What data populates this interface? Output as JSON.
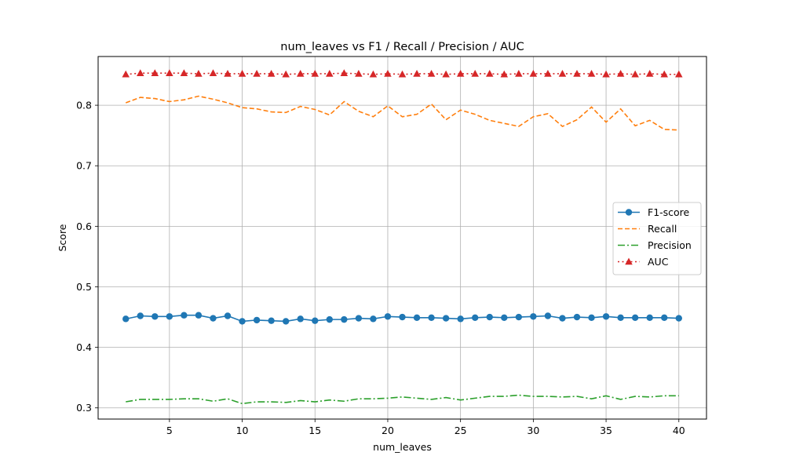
{
  "chart_data": {
    "type": "line",
    "title": "num_leaves vs F1 / Recall / Precision / AUC",
    "xlabel": "num_leaves",
    "ylabel": "Score",
    "xlim": [
      0.1,
      41.9
    ],
    "ylim": [
      0.2815,
      0.8805
    ],
    "xticks": [
      5,
      10,
      15,
      20,
      25,
      30,
      35,
      40
    ],
    "yticks": [
      0.3,
      0.4,
      0.5,
      0.6,
      0.7,
      0.8
    ],
    "grid": true,
    "legend_position": "center-right",
    "x": [
      2,
      3,
      4,
      5,
      6,
      7,
      8,
      9,
      10,
      11,
      12,
      13,
      14,
      15,
      16,
      17,
      18,
      19,
      20,
      21,
      22,
      23,
      24,
      25,
      26,
      27,
      28,
      29,
      30,
      31,
      32,
      33,
      34,
      35,
      36,
      37,
      38,
      39,
      40
    ],
    "series": [
      {
        "name": "F1-score",
        "color": "#1f77b4",
        "style": "solid",
        "marker": "circle",
        "values": [
          0.447,
          0.452,
          0.451,
          0.451,
          0.453,
          0.453,
          0.448,
          0.452,
          0.443,
          0.445,
          0.444,
          0.443,
          0.447,
          0.444,
          0.446,
          0.446,
          0.448,
          0.447,
          0.451,
          0.45,
          0.449,
          0.449,
          0.448,
          0.447,
          0.449,
          0.45,
          0.449,
          0.45,
          0.451,
          0.452,
          0.448,
          0.45,
          0.449,
          0.451,
          0.449,
          0.449,
          0.449,
          0.449,
          0.448
        ]
      },
      {
        "name": "Recall",
        "color": "#ff7f0e",
        "style": "dashed",
        "marker": "none",
        "values": [
          0.804,
          0.813,
          0.811,
          0.806,
          0.809,
          0.815,
          0.81,
          0.804,
          0.796,
          0.794,
          0.789,
          0.788,
          0.798,
          0.793,
          0.784,
          0.806,
          0.79,
          0.781,
          0.799,
          0.781,
          0.785,
          0.802,
          0.776,
          0.792,
          0.785,
          0.775,
          0.77,
          0.765,
          0.781,
          0.786,
          0.765,
          0.776,
          0.797,
          0.772,
          0.794,
          0.766,
          0.775,
          0.76,
          0.759
        ]
      },
      {
        "name": "Precision",
        "color": "#2ca02c",
        "style": "dashdot",
        "marker": "none",
        "values": [
          0.31,
          0.314,
          0.314,
          0.314,
          0.315,
          0.315,
          0.311,
          0.315,
          0.307,
          0.31,
          0.31,
          0.309,
          0.312,
          0.31,
          0.313,
          0.311,
          0.315,
          0.315,
          0.316,
          0.318,
          0.316,
          0.314,
          0.317,
          0.313,
          0.316,
          0.319,
          0.319,
          0.321,
          0.319,
          0.319,
          0.318,
          0.319,
          0.315,
          0.32,
          0.314,
          0.319,
          0.318,
          0.32,
          0.32
        ]
      },
      {
        "name": "AUC",
        "color": "#d62728",
        "style": "dotted",
        "marker": "triangle",
        "values": [
          0.851,
          0.853,
          0.853,
          0.853,
          0.853,
          0.852,
          0.853,
          0.852,
          0.852,
          0.852,
          0.852,
          0.851,
          0.852,
          0.852,
          0.852,
          0.853,
          0.852,
          0.851,
          0.852,
          0.851,
          0.852,
          0.852,
          0.851,
          0.852,
          0.852,
          0.852,
          0.851,
          0.852,
          0.852,
          0.852,
          0.852,
          0.852,
          0.852,
          0.851,
          0.852,
          0.851,
          0.852,
          0.851,
          0.851
        ]
      }
    ]
  }
}
